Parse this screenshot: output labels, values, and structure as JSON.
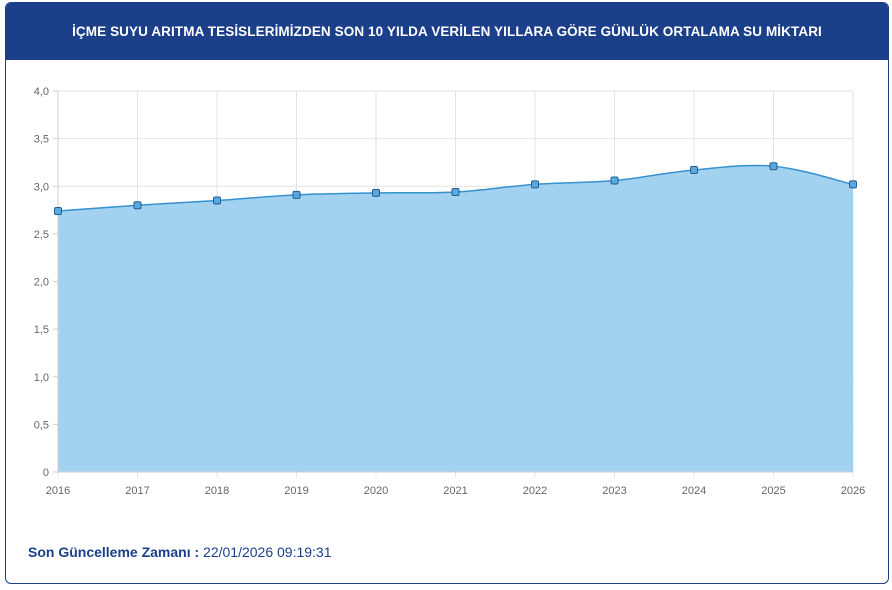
{
  "header": {
    "title": "İÇME SUYU ARITMA TESİSLERİMİZDEN SON 10 YILDA VERİLEN YILLARA GÖRE GÜNLÜK ORTALAMA SU MİKTARI"
  },
  "footer": {
    "label": "Son Güncelleme Zamanı :",
    "value": "22/01/2026 09:19:31"
  },
  "colors": {
    "brand": "#1c3f8a",
    "area_fill": "#9dd0ee",
    "line": "#3591cf",
    "grid": "#e3e3e3"
  },
  "chart_data": {
    "type": "area",
    "categories": [
      "2016",
      "2017",
      "2018",
      "2019",
      "2020",
      "2021",
      "2022",
      "2023",
      "2024",
      "2025",
      "2026"
    ],
    "values": [
      2.74,
      2.8,
      2.85,
      2.91,
      2.93,
      2.94,
      3.02,
      3.06,
      3.17,
      3.21,
      3.02
    ],
    "yticks": [
      "0",
      "0,5",
      "1,0",
      "1,5",
      "2,0",
      "2,5",
      "3,0",
      "3,5",
      "4,0"
    ],
    "ylim": [
      0,
      4
    ],
    "grid": true,
    "legend": "none",
    "title": "",
    "xlabel": "",
    "ylabel": ""
  }
}
